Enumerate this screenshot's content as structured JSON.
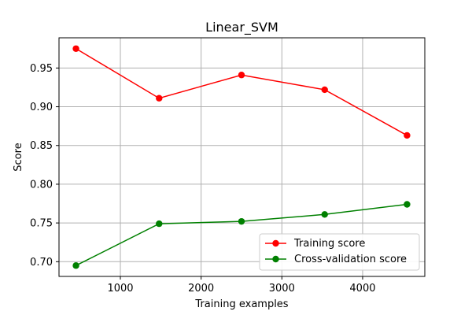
{
  "chart_data": {
    "type": "line",
    "title": "Linear_SVM",
    "xlabel": "Training examples",
    "ylabel": "Score",
    "x": [
      450,
      1480,
      2500,
      3530,
      4550
    ],
    "series": [
      {
        "name": "Training score",
        "values": [
          0.975,
          0.911,
          0.941,
          0.922,
          0.863
        ],
        "color": "#ff0000"
      },
      {
        "name": "Cross-validation score",
        "values": [
          0.695,
          0.749,
          0.752,
          0.761,
          0.774
        ],
        "color": "#008000"
      }
    ],
    "xlim": [
      240,
      4770
    ],
    "ylim": [
      0.681,
      0.989
    ],
    "xticks": [
      1000,
      2000,
      3000,
      4000
    ],
    "yticks": [
      0.7,
      0.75,
      0.8,
      0.85,
      0.9,
      0.95
    ],
    "xtick_labels": [
      "1000",
      "2000",
      "3000",
      "4000"
    ],
    "ytick_labels": [
      "0.70",
      "0.75",
      "0.80",
      "0.85",
      "0.90",
      "0.95"
    ],
    "grid": true,
    "legend_position": "lower-right"
  }
}
